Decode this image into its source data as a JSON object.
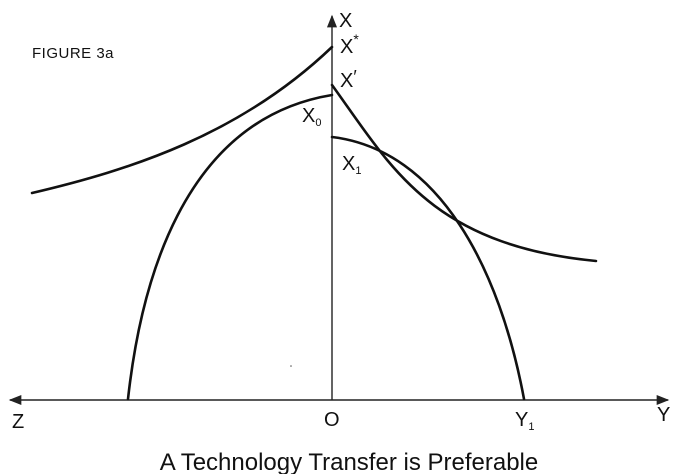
{
  "figure_label": "FIGURE 3a",
  "caption": "A Technology Transfer is Preferable",
  "axes": {
    "vertical": "X",
    "right": "Y",
    "left": "Z",
    "origin": "O"
  },
  "points": {
    "x_star": {
      "base": "X",
      "mark": "*"
    },
    "x_prime": {
      "base": "X",
      "mark": "′"
    },
    "x_zero": {
      "base": "X",
      "sub": "0"
    },
    "x_one": {
      "base": "X",
      "sub": "1"
    },
    "y_one": {
      "base": "Y",
      "sub": "1"
    }
  },
  "style": {
    "ink": "#111111",
    "background": "#ffffff"
  }
}
